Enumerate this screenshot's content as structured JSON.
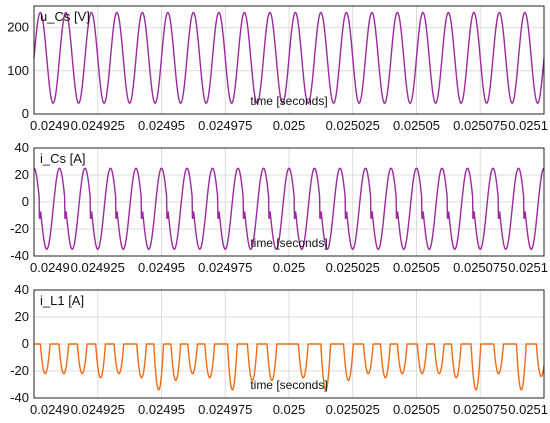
{
  "colors": {
    "series_purple": "#9b2a9e",
    "series_orange": "#f26a12",
    "grid": "#dcdcdc",
    "axis": "#222222",
    "plot_background": "#ffffff"
  },
  "chart_data": [
    {
      "type": "line",
      "title": "",
      "ylabel": "u_Cs [V]",
      "xlabel": "time [seconds]",
      "xlim": [
        0.0249,
        0.0251
      ],
      "ylim": [
        0,
        250
      ],
      "grid": true,
      "x_ticks": [
        "0.0249",
        "0.024925",
        "0.02495",
        "0.024975",
        "0.025",
        "0.025025",
        "0.02505",
        "0.025075",
        "0.0251"
      ],
      "y_ticks": [
        "0",
        "100",
        "200"
      ],
      "series": [
        {
          "color": "#9b2a9e",
          "waveform": "sinusoid",
          "cycles_in_window": 20,
          "x_first_peak": 0.0249025,
          "max": 235,
          "min": 25
        }
      ]
    },
    {
      "type": "line",
      "title": "",
      "ylabel": "i_Cs [A]",
      "xlabel": "time [seconds]",
      "xlim": [
        0.0249,
        0.0251
      ],
      "ylim": [
        -40,
        40
      ],
      "grid": true,
      "x_ticks": [
        "0.0249",
        "0.024925",
        "0.02495",
        "0.024975",
        "0.025",
        "0.025025",
        "0.02505",
        "0.025075",
        "0.0251"
      ],
      "y_ticks": [
        "-40",
        "-20",
        "0",
        "20",
        "40"
      ],
      "series": [
        {
          "color": "#9b2a9e",
          "waveform": "sinusoid with notch near zero crossing",
          "cycles_in_window": 20,
          "x_first_peak": 0.0249,
          "max": 25,
          "min": -35,
          "notch_depth": -12
        }
      ]
    },
    {
      "type": "line",
      "title": "",
      "ylabel": "i_L1 [A]",
      "xlabel": "time [seconds]",
      "xlim": [
        0.0249,
        0.0251
      ],
      "ylim": [
        -40,
        40
      ],
      "grid": true,
      "x_ticks": [
        "0.0249",
        "0.024925",
        "0.02495",
        "0.024975",
        "0.025",
        "0.025025",
        "0.02505",
        "0.025075",
        "0.0251"
      ],
      "y_ticks": [
        "-40",
        "-20",
        "0",
        "20",
        "40"
      ],
      "series": [
        {
          "color": "#f26a12",
          "waveform": "negative pulses clipped at zero",
          "x_pulses": [
            0.0249044,
            0.0249117,
            0.0249189,
            0.0249261,
            0.0249333,
            0.0249422,
            0.0249489,
            0.0249556,
            0.0249622,
            0.0249689,
            0.0249778,
            0.0249856,
            0.0249933,
            0.0250056,
            0.0250144,
            0.0250233,
            0.0250311,
            0.0250378,
            0.0250444,
            0.0250522,
            0.0250589,
            0.0250656,
            0.0250733,
            0.0250822,
            0.0250911,
            0.0250989
          ],
          "y_pulses": [
            -22,
            -22,
            -22,
            -25,
            -22,
            -25,
            -34,
            -27,
            -22,
            -25,
            -34,
            -27,
            -27,
            -25,
            -34,
            -27,
            -22,
            -25,
            -22,
            -22,
            -22,
            -25,
            -34,
            -22,
            -34,
            -24
          ],
          "max": 0,
          "min": -35
        }
      ]
    }
  ]
}
